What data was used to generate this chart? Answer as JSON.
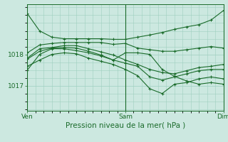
{
  "bg_color": "#cce8e0",
  "line_color": "#1a6b2a",
  "grid_color": "#9ecfbf",
  "xlabel": "Pression niveau de la mer( hPa )",
  "xtick_labels": [
    "Ven",
    "Sam",
    "Dim"
  ],
  "xtick_positions": [
    0,
    48,
    96
  ],
  "ytick_labels": [
    "1017",
    "1018"
  ],
  "ytick_positions": [
    1017.0,
    1018.0
  ],
  "ylim": [
    1016.2,
    1019.6
  ],
  "xlim": [
    0,
    96
  ],
  "series": [
    [
      0,
      1019.3,
      6,
      1018.75,
      12,
      1018.55,
      18,
      1018.5,
      24,
      1018.5,
      30,
      1018.5,
      36,
      1018.5,
      42,
      1018.48,
      48,
      1018.48,
      54,
      1018.55,
      60,
      1018.62,
      66,
      1018.7,
      72,
      1018.8,
      78,
      1018.88,
      84,
      1018.95,
      90,
      1019.1,
      96,
      1019.4
    ],
    [
      0,
      1018.05,
      6,
      1018.3,
      12,
      1018.35,
      18,
      1018.38,
      24,
      1018.38,
      30,
      1018.38,
      36,
      1018.38,
      42,
      1018.32,
      48,
      1018.35,
      54,
      1018.2,
      60,
      1018.15,
      66,
      1018.1,
      72,
      1018.1,
      78,
      1018.15,
      84,
      1018.2,
      90,
      1018.25,
      96,
      1018.2
    ],
    [
      0,
      1017.85,
      6,
      1018.1,
      12,
      1018.2,
      18,
      1018.22,
      24,
      1018.2,
      30,
      1018.1,
      36,
      1017.98,
      42,
      1017.82,
      48,
      1018.05,
      54,
      1018.05,
      60,
      1018.0,
      66,
      1017.52,
      72,
      1017.3,
      78,
      1017.15,
      84,
      1017.05,
      90,
      1017.1,
      96,
      1017.05
    ],
    [
      0,
      1017.62,
      6,
      1017.82,
      12,
      1018.0,
      18,
      1018.05,
      24,
      1018.02,
      30,
      1017.88,
      36,
      1017.78,
      42,
      1017.68,
      48,
      1017.52,
      54,
      1017.32,
      60,
      1016.9,
      66,
      1016.75,
      72,
      1017.05,
      78,
      1017.1,
      84,
      1017.22,
      90,
      1017.28,
      96,
      1017.22
    ],
    [
      0,
      1017.5,
      6,
      1018.0,
      12,
      1018.18,
      18,
      1018.18,
      24,
      1018.12,
      30,
      1018.05,
      36,
      1017.95,
      42,
      1017.82,
      48,
      1017.72,
      54,
      1017.62,
      60,
      1017.28,
      66,
      1017.18,
      72,
      1017.28,
      78,
      1017.38,
      84,
      1017.48,
      90,
      1017.52,
      96,
      1017.52
    ],
    [
      0,
      1017.88,
      6,
      1018.18,
      12,
      1018.22,
      18,
      1018.28,
      24,
      1018.28,
      30,
      1018.18,
      36,
      1018.08,
      42,
      1017.98,
      48,
      1017.82,
      54,
      1017.68,
      60,
      1017.52,
      66,
      1017.42,
      72,
      1017.38,
      78,
      1017.48,
      84,
      1017.58,
      90,
      1017.62,
      96,
      1017.68
    ]
  ]
}
